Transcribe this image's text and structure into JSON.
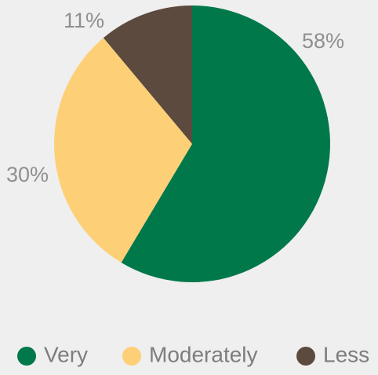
{
  "chart_data": {
    "type": "pie",
    "categories": [
      "Very",
      "Moderately",
      "Less"
    ],
    "values": [
      58,
      30,
      11
    ],
    "value_labels": [
      "58%",
      "30%",
      "11%"
    ],
    "colors": [
      "#00784a",
      "#fdd077",
      "#5c4a3e"
    ],
    "legend": "bottom"
  }
}
